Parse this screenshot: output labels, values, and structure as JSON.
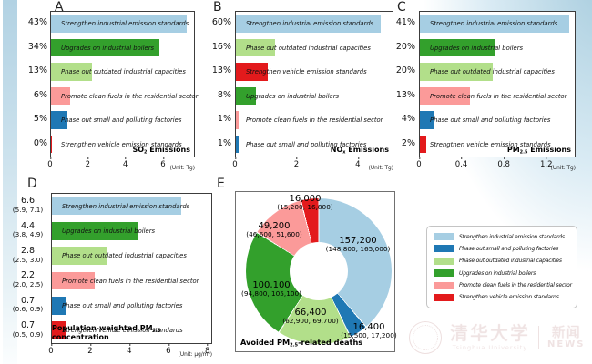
{
  "palette": {
    "light_blue": "#a6cee3",
    "dark_blue": "#1f78b4",
    "light_green": "#b2df8a",
    "dark_green": "#33a02c",
    "pink": "#fb9a99",
    "red": "#e31a1c"
  },
  "chart_data": [
    {
      "panel": "A",
      "type": "bar",
      "orientation": "horizontal",
      "title_pre": "SO",
      "title_sub": "2",
      "title_post": " Emissions",
      "unit": "(Unit: Tg)",
      "xmax": 7.6,
      "xticks": [
        0,
        2,
        4,
        6
      ],
      "rows": [
        {
          "pct": "43%",
          "label": "Strengthen industrial emission standards",
          "value": 7.2,
          "color": "#a6cee3"
        },
        {
          "pct": "34%",
          "label": "Upgrades on industrial boilers",
          "value": 5.75,
          "color": "#33a02c"
        },
        {
          "pct": "13%",
          "label": "Phase out outdated industrial capacities",
          "value": 2.2,
          "color": "#b2df8a"
        },
        {
          "pct": "6%",
          "label": "Promote clean fuels in the residential sector",
          "value": 1.0,
          "color": "#fb9a99"
        },
        {
          "pct": "5%",
          "label": "Phase out small and polluting factories",
          "value": 0.85,
          "color": "#1f78b4"
        },
        {
          "pct": "0%",
          "label": "Strengthen vehicle emission standards",
          "value": 0.07,
          "color": "#e31a1c"
        }
      ]
    },
    {
      "panel": "B",
      "type": "bar",
      "orientation": "horizontal",
      "title_pre": "NO",
      "title_sub": "x",
      "title_post": " Emissions",
      "unit": "(Unit: Tg)",
      "xmax": 5.1,
      "xticks": [
        0,
        2,
        4
      ],
      "rows": [
        {
          "pct": "60%",
          "label": "Strengthen industrial emission standards",
          "value": 4.7,
          "color": "#a6cee3"
        },
        {
          "pct": "16%",
          "label": "Phase out outdated industrial capacities",
          "value": 1.27,
          "color": "#b2df8a"
        },
        {
          "pct": "13%",
          "label": "Strengthen vehicle emission standards",
          "value": 1.05,
          "color": "#e31a1c"
        },
        {
          "pct": "8%",
          "label": "Upgrades on industrial boilers",
          "value": 0.66,
          "color": "#33a02c"
        },
        {
          "pct": "1%",
          "label": "Promote clean fuels in the residential sector",
          "value": 0.09,
          "color": "#fb9a99"
        },
        {
          "pct": "1%",
          "label": "Phase out small and polluting factories",
          "value": 0.09,
          "color": "#1f78b4"
        }
      ]
    },
    {
      "panel": "C",
      "type": "bar",
      "orientation": "horizontal",
      "title_pre": "PM",
      "title_sub": "2.5",
      "title_post": " Emissions",
      "unit": "(Unit: Tg)",
      "xmax": 1.46,
      "xticks": [
        0,
        0.4,
        0.8,
        1.2
      ],
      "rows": [
        {
          "pct": "41%",
          "label": "Strengthen industrial emission standards",
          "value": 1.41,
          "color": "#a6cee3"
        },
        {
          "pct": "20%",
          "label": "Upgrades on industrial boilers",
          "value": 0.71,
          "color": "#33a02c"
        },
        {
          "pct": "20%",
          "label": "Phase out outdated industrial capacities",
          "value": 0.69,
          "color": "#b2df8a"
        },
        {
          "pct": "13%",
          "label": "Promote clean fuels in the residential sector",
          "value": 0.47,
          "color": "#fb9a99"
        },
        {
          "pct": "4%",
          "label": "Phase out small and polluting factories",
          "value": 0.14,
          "color": "#1f78b4"
        },
        {
          "pct": "2%",
          "label": "Strengthen vehicle emission standards",
          "value": 0.06,
          "color": "#e31a1c"
        }
      ]
    },
    {
      "panel": "D",
      "type": "bar",
      "orientation": "horizontal",
      "title_pre": "Population-weighted PM",
      "title_sub": "2.5",
      "title_post": " concentration",
      "unit": "(Unit: μg/m³)",
      "xmax": 8.15,
      "xticks": [
        0,
        2,
        4,
        6,
        8
      ],
      "rows": [
        {
          "pct": "6.6",
          "ci": "(5.9, 7.1)",
          "label": "Strengthen industrial emission standards",
          "value": 6.6,
          "color": "#a6cee3"
        },
        {
          "pct": "4.4",
          "ci": "(3.8, 4.9)",
          "label": "Upgrades on industrial boilers",
          "value": 4.4,
          "color": "#33a02c"
        },
        {
          "pct": "2.8",
          "ci": "(2.5, 3.0)",
          "label": "Phase out outdated industrial capacities",
          "value": 2.8,
          "color": "#b2df8a"
        },
        {
          "pct": "2.2",
          "ci": "(2.0, 2.5)",
          "label": "Promote clean fuels in the residential sector",
          "value": 2.2,
          "color": "#fb9a99"
        },
        {
          "pct": "0.7",
          "ci": "(0.6, 0.9)",
          "label": "Phase out small and polluting factories",
          "value": 0.7,
          "color": "#1f78b4"
        },
        {
          "pct": "0.7",
          "ci": "(0.5, 0.9)",
          "label": "Strengthen vehicle emission standards",
          "value": 0.7,
          "color": "#e31a1c"
        }
      ]
    },
    {
      "panel": "E",
      "type": "donut",
      "title_pre": "Avoided PM",
      "title_sub": "2.5",
      "title_post": "-related deaths",
      "slices": [
        {
          "label": "Strengthen industrial emission standards",
          "value": 157200,
          "text": "157,200",
          "ci": "(148,800, 165,000)",
          "color": "#a6cee3"
        },
        {
          "label": "Phase out small and polluting factories",
          "value": 16400,
          "text": "16,400",
          "ci": "(15,500, 17,200)",
          "color": "#1f78b4"
        },
        {
          "label": "Phase out outdated industrial capacities",
          "value": 66400,
          "text": "66,400",
          "ci": "(62,900, 69,700)",
          "color": "#b2df8a"
        },
        {
          "label": "Upgrades on industrial boilers",
          "value": 100100,
          "text": "100,100",
          "ci": "(94,800, 105,100)",
          "color": "#33a02c"
        },
        {
          "label": "Promote clean fuels in the residential sector",
          "value": 49200,
          "text": "49,200",
          "ci": "(46,600, 51,600)",
          "color": "#fb9a99"
        },
        {
          "label": "Strengthen vehicle emission standards",
          "value": 16000,
          "text": "16,000",
          "ci": "(15,200, 16,800)",
          "color": "#e31a1c"
        }
      ]
    }
  ],
  "legend": {
    "items": [
      {
        "label": "Strengthen industrial emission standards",
        "color": "#a6cee3"
      },
      {
        "label": "Phase out small and polluting factories",
        "color": "#1f78b4"
      },
      {
        "label": "Phase out outdated industrial capacities",
        "color": "#b2df8a"
      },
      {
        "label": "Upgrades on industrial boilers",
        "color": "#33a02c"
      },
      {
        "label": "Promote clean fuels in the residential sector",
        "color": "#fb9a99"
      },
      {
        "label": "Strengthen vehicle emission standards",
        "color": "#e31a1c"
      }
    ]
  },
  "watermark": {
    "university_zh": "清华大学",
    "university_en": "Tsinghua University",
    "news_zh": "新闻",
    "news_en": "NEWS"
  }
}
